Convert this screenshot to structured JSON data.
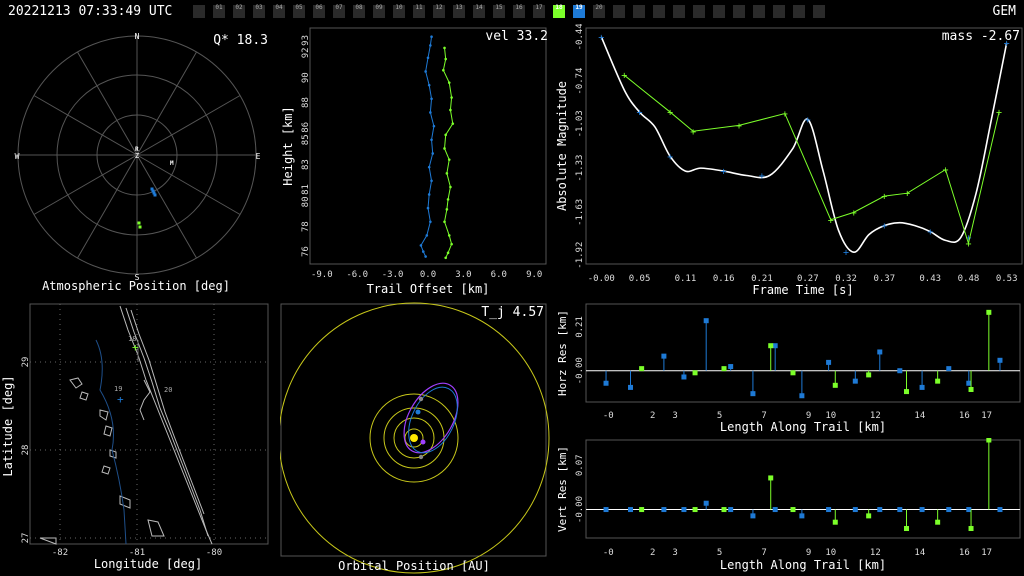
{
  "header": {
    "timestamp": "20221213 07:33:49 UTC",
    "station": "GEM",
    "cameras": [
      "",
      "01",
      "02",
      "03",
      "04",
      "05",
      "06",
      "07",
      "08",
      "09",
      "10",
      "11",
      "12",
      "13",
      "14",
      "15",
      "16",
      "17",
      "18",
      "19",
      "20",
      "",
      "",
      "",
      "",
      "",
      "",
      "",
      "",
      "",
      "",
      ""
    ],
    "active_green": "18",
    "active_blue": "19"
  },
  "sky": {
    "label": "Atmospheric Position [deg]",
    "metric": "Q* 18.3",
    "dirs": {
      "n": "N",
      "s": "S",
      "e": "E",
      "w": "W",
      "z": "Z",
      "r": "R",
      "m": "M"
    }
  },
  "height": {
    "label_x": "Trail Offset [km]",
    "label_y": "Height [km]",
    "metric": "vel 33.2",
    "xticks": [
      "-9.0",
      "-6.0",
      "-3.0",
      "0.0",
      "3.0",
      "6.0",
      "9.0"
    ],
    "yticks": [
      "76",
      "78",
      "80",
      "81",
      "83",
      "85",
      "86",
      "88",
      "90",
      "92",
      "93"
    ]
  },
  "mag": {
    "label_x": "Frame Time [s]",
    "label_y": "Absolute Magnitude",
    "metric": "mass -2.67",
    "xticks": [
      "-0.00",
      "0.05",
      "0.11",
      "0.16",
      "0.21",
      "0.27",
      "0.32",
      "0.37",
      "0.43",
      "0.48",
      "0.53"
    ],
    "yticks": [
      "-0.44",
      "-0.74",
      "-1.03",
      "-1.33",
      "-1.63",
      "-1.92"
    ]
  },
  "map": {
    "label_x": "Longitude [deg]",
    "label_y": "Latitude [deg]",
    "xticks": [
      "-82",
      "-81",
      "-80"
    ],
    "yticks": [
      "29",
      "28",
      "27"
    ],
    "markers": [
      "18",
      "19",
      "20"
    ]
  },
  "orbit": {
    "label": "Orbital Position [AU]",
    "metric": "T_j 4.57"
  },
  "horz": {
    "label_x": "Length Along Trail [km]",
    "label_y": "Horz Res [km]",
    "xticks": [
      "-0",
      "2",
      "3",
      "5",
      "7",
      "9",
      "10",
      "12",
      "14",
      "16",
      "17"
    ],
    "yticks": [
      "0.21",
      "-0.00"
    ]
  },
  "vert": {
    "label_x": "Length Along Trail [km]",
    "label_y": "Vert Res [km]",
    "xticks": [
      "-0",
      "2",
      "3",
      "5",
      "7",
      "9",
      "10",
      "12",
      "14",
      "16",
      "17"
    ],
    "yticks": [
      "0.07",
      "-0.00"
    ]
  },
  "chart_data": [
    {
      "type": "scatter",
      "title": "Q* 18.3",
      "xlabel": "Atmospheric Position [deg]",
      "series": [
        {
          "color": "#1e7ad6",
          "x": [
            0.15,
            0.16,
            0.17,
            0.18
          ],
          "y": [
            -0.34,
            -0.36,
            -0.38,
            -0.4
          ]
        },
        {
          "color": "#7cff2a",
          "x": [
            0.02,
            0.03
          ],
          "y": [
            -0.68,
            -0.72
          ]
        }
      ]
    },
    {
      "type": "line",
      "title": "vel 33.2",
      "xlabel": "Trail Offset [km]",
      "ylabel": "Height [km]",
      "xlim": [
        -10,
        10
      ],
      "ylim": [
        75,
        94
      ],
      "series": [
        {
          "color": "#1e7ad6",
          "x": [
            0.3,
            0.2,
            0.0,
            -0.2,
            0.1,
            0.3,
            0.2,
            0.5,
            0.3,
            0.4,
            0.1,
            0.3,
            0.1,
            0.0,
            0.2,
            -0.1,
            -0.6,
            -0.4,
            -0.2
          ],
          "y": [
            93.3,
            92.6,
            91.6,
            90.5,
            89.4,
            88.3,
            87.2,
            86.1,
            85.0,
            83.9,
            82.8,
            81.7,
            80.6,
            79.5,
            78.4,
            77.3,
            76.5,
            76.0,
            75.6
          ]
        },
        {
          "color": "#7cff2a",
          "x": [
            1.4,
            1.5,
            1.3,
            1.8,
            2.0,
            1.9,
            2.1,
            1.5,
            1.4,
            1.8,
            1.6,
            1.9,
            1.7,
            1.6,
            1.4,
            1.8,
            2.0,
            1.7,
            1.5
          ],
          "y": [
            92.4,
            91.5,
            90.6,
            89.6,
            88.4,
            87.4,
            86.3,
            85.4,
            84.3,
            83.4,
            82.3,
            81.2,
            80.2,
            79.4,
            78.4,
            77.3,
            76.6,
            75.9,
            75.5
          ]
        }
      ]
    },
    {
      "type": "line",
      "title": "mass -2.67",
      "xlabel": "Frame Time [s]",
      "ylabel": "Absolute Magnitude",
      "xlim": [
        -0.02,
        0.55
      ],
      "ylim": [
        -0.38,
        -1.98
      ],
      "series": [
        {
          "name": "fit",
          "color": "#ffffff",
          "x": [
            0.0,
            0.03,
            0.05,
            0.07,
            0.09,
            0.11,
            0.13,
            0.16,
            0.19,
            0.22,
            0.25,
            0.27,
            0.29,
            0.31,
            0.33,
            0.35,
            0.37,
            0.39,
            0.41,
            0.43,
            0.45,
            0.47,
            0.49,
            0.51,
            0.53
          ],
          "y": [
            -0.44,
            -0.8,
            -0.95,
            -1.05,
            -1.25,
            -1.35,
            -1.33,
            -1.35,
            -1.38,
            -1.38,
            -1.2,
            -1.0,
            -1.35,
            -1.75,
            -1.9,
            -1.78,
            -1.72,
            -1.7,
            -1.72,
            -1.76,
            -1.82,
            -1.8,
            -1.5,
            -1.0,
            -0.48
          ]
        },
        {
          "name": "blue",
          "color": "#1e7ad6",
          "x": [
            0.0,
            0.05,
            0.09,
            0.16,
            0.21,
            0.27,
            0.32,
            0.37,
            0.43,
            0.48,
            0.53
          ],
          "y": [
            -0.44,
            -0.95,
            -1.25,
            -1.35,
            -1.38,
            -1.0,
            -1.9,
            -1.72,
            -1.76,
            -1.8,
            -0.48
          ]
        },
        {
          "name": "green",
          "color": "#7cff2a",
          "x": [
            0.03,
            0.09,
            0.12,
            0.18,
            0.24,
            0.3,
            0.33,
            0.37,
            0.4,
            0.45,
            0.48,
            0.52
          ],
          "y": [
            -0.7,
            -0.95,
            -1.08,
            -1.04,
            -0.96,
            -1.68,
            -1.63,
            -1.52,
            -1.5,
            -1.34,
            -1.84,
            -0.95
          ]
        }
      ]
    },
    {
      "type": "scatter",
      "title": "Horz Res [km]",
      "xlabel": "Length Along Trail [km]",
      "ylabel": "Horz Res [km]",
      "xlim": [
        -1,
        18.5
      ],
      "ylim": [
        -0.15,
        0.32
      ],
      "series": [
        {
          "color": "#1e7ad6",
          "x": [
            -0.1,
            1.0,
            2.5,
            3.4,
            4.4,
            5.5,
            6.5,
            7.5,
            8.7,
            9.9,
            11.1,
            12.2,
            13.1,
            14.1,
            15.3,
            16.2,
            17.6
          ],
          "y": [
            -0.06,
            -0.08,
            0.07,
            -0.03,
            0.24,
            0.02,
            -0.11,
            0.12,
            -0.12,
            0.04,
            -0.05,
            0.09,
            -0.0,
            -0.08,
            0.01,
            -0.06,
            0.05
          ]
        },
        {
          "color": "#7cff2a",
          "x": [
            1.5,
            3.9,
            5.2,
            7.3,
            8.3,
            10.2,
            11.7,
            13.4,
            14.8,
            16.3,
            17.1
          ],
          "y": [
            0.01,
            -0.01,
            0.01,
            0.12,
            -0.01,
            -0.07,
            -0.02,
            -0.1,
            -0.05,
            -0.09,
            0.28
          ]
        }
      ]
    },
    {
      "type": "scatter",
      "title": "Vert Res [km]",
      "xlabel": "Length Along Trail [km]",
      "ylabel": "Vert Res [km]",
      "xlim": [
        -1,
        18.5
      ],
      "ylim": [
        -0.045,
        0.11
      ],
      "series": [
        {
          "color": "#1e7ad6",
          "x": [
            -0.1,
            1.0,
            2.5,
            3.4,
            4.4,
            5.5,
            6.5,
            7.5,
            8.7,
            9.9,
            11.1,
            12.2,
            13.1,
            14.1,
            15.3,
            16.2,
            17.6
          ],
          "y": [
            -0.0,
            -0.0,
            0.0,
            -0.0,
            0.01,
            0.0,
            -0.01,
            0.0,
            -0.01,
            0.0,
            -0.0,
            0.0,
            0.0,
            -0.0,
            -0.0,
            -0.0,
            0.0
          ]
        },
        {
          "color": "#7cff2a",
          "x": [
            1.5,
            3.9,
            5.2,
            7.3,
            8.3,
            10.2,
            11.7,
            13.4,
            14.8,
            16.3,
            17.1
          ],
          "y": [
            0.0,
            -0.0,
            0.0,
            0.05,
            -0.0,
            -0.02,
            -0.01,
            -0.03,
            -0.02,
            -0.03,
            0.11
          ]
        }
      ]
    }
  ]
}
